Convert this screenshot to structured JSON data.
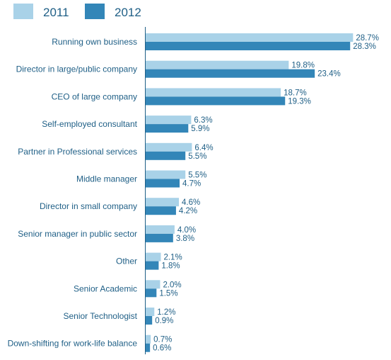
{
  "chart_data": {
    "type": "bar",
    "orientation": "horizontal",
    "title": "",
    "xlabel": "",
    "ylabel": "",
    "xlim": [
      0,
      30
    ],
    "grid": false,
    "legend_position": "top-left",
    "colors": {
      "2011": "#a9d2e8",
      "2012": "#3386b8"
    },
    "categories": [
      "Running own business",
      "Director in large/public company",
      "CEO of large company",
      "Self-employed consultant",
      "Partner in Professional services",
      "Middle manager",
      "Director in small company",
      "Senior manager in public sector",
      "Other",
      "Senior Academic",
      "Senior Technologist",
      "Down-shifting for work-life balance"
    ],
    "series": [
      {
        "name": "2011",
        "values": [
          28.7,
          19.8,
          18.7,
          6.3,
          6.4,
          5.5,
          4.6,
          4.0,
          2.1,
          2.0,
          1.2,
          0.7
        ],
        "labels": [
          "28.7%",
          "19.8%",
          "18.7%",
          "6.3%",
          "6.4%",
          "5.5%",
          "4.6%",
          "4.0%",
          "2.1%",
          "2.0%",
          "1.2%",
          "0.7%"
        ]
      },
      {
        "name": "2012",
        "values": [
          28.3,
          23.4,
          19.3,
          5.9,
          5.5,
          4.7,
          4.2,
          3.8,
          1.8,
          1.5,
          0.9,
          0.6
        ],
        "labels": [
          "28.3%",
          "23.4%",
          "19.3%",
          "5.9%",
          "5.5%",
          "4.7%",
          "4.2%",
          "3.8%",
          "1.8%",
          "1.5%",
          "0.9%",
          "0.6%"
        ]
      }
    ]
  }
}
